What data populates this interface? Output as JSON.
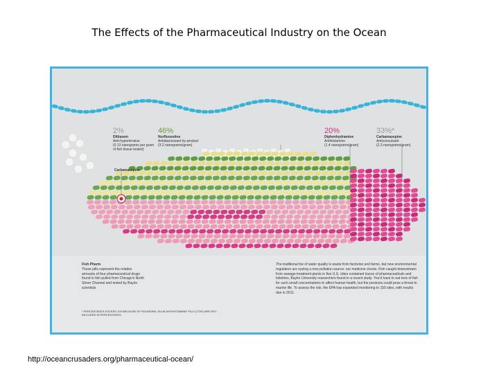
{
  "header": {
    "title": "The Effects of the Pharmaceutical Industry on the Ocean"
  },
  "infographic": {
    "drugs": [
      {
        "percent": "2%",
        "name": "Diltiazem",
        "use": "Anti-hypertensive",
        "amount": "(0.13 nanograms per gram of fish tissue tested)"
      },
      {
        "percent": "46%",
        "name": "Norfluoxetine",
        "use": "Antidepressant by-product",
        "amount": "(3.2 nanograms/gram)"
      },
      {
        "percent": "20%",
        "name": "Diphenhydramine",
        "use": "Antihistamine",
        "amount": "(1.4 nanograms/gram)"
      },
      {
        "percent": "33%*",
        "name": "Carbamazepine",
        "use": "Anticonvulsant",
        "amount": "(2.3 nanograms/gram)"
      }
    ],
    "head_label": "Carbamazepine",
    "caption_title": "Fish Pharm",
    "caption": "These pills represent the relative amounts of four pharmaceutical drugs found in fish pulled from Chicago's North Shore Channel and tested by Baylor scientists",
    "footnote": "* PERCENTAGES EXCEED 100 BECAUSE OF ROUNDING. BLUE ANTIHISTAMINE PILLS (TOP) ARE NOT INCLUDED IN PERCENTAGES.",
    "body": "The traditional foe of water quality is waste from factories and farms, but now environmental regulators are eyeing a new pollution source: our medicine chests. Fish caught downstream from sewage treatment plants in five U.S. cities contained traces of pharmaceuticals and toiletries, Baylor University researchers found in a recent study. You'd have to eat tons of fish for such small concentrations to affect human health, but the products could pose a threat to marine life. To assess the risk, the EPA has expanded monitoring to 150 sites, with results due in 2011."
  },
  "footer": {
    "url": "http://oceancrusaders.org/pharmaceutical-ocean/"
  }
}
